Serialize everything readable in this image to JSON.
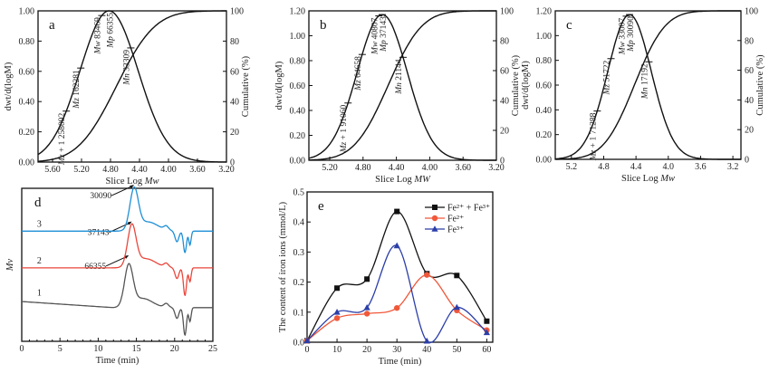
{
  "chart_data": [
    {
      "id": "a",
      "type": "line",
      "panel_label": "a",
      "xlabel": "Slice Log Mw",
      "ylabel_left": "dwt/d(logM)",
      "ylabel_right": "Cumulative (%)",
      "xlim": [
        5.8,
        3.2
      ],
      "ylim_left": [
        0,
        1.0
      ],
      "ylim_right": [
        0,
        100
      ],
      "xticks": [
        "5.60",
        "5.20",
        "4.80",
        "4.40",
        "4.00",
        "3.60",
        "3.20"
      ],
      "xtick_values": [
        5.6,
        5.2,
        4.8,
        4.4,
        4.0,
        3.6,
        3.2
      ],
      "yticks_left": [
        "0.00",
        "0.20",
        "0.40",
        "0.60",
        "0.80",
        "1.00"
      ],
      "ytick_values_left": [
        0,
        0.2,
        0.4,
        0.6,
        0.8,
        1.0
      ],
      "yticks_right": [
        "0",
        "20",
        "40",
        "60",
        "80",
        "100"
      ],
      "ytick_values_right": [
        0,
        20,
        40,
        60,
        80,
        100
      ],
      "distribution": {
        "peak_logM": 4.82,
        "peak_height": 1.0,
        "sigma": 0.4
      },
      "cumulative": {
        "mid_logM": 4.72,
        "sigma": 0.42
      },
      "annotations": [
        {
          "text": "Mz + 1 258092",
          "logM": 5.41
        },
        {
          "text": "Mz 162281",
          "logM": 5.21
        },
        {
          "text": "Mw 83469",
          "logM": 4.92
        },
        {
          "text": "Mp 66355",
          "logM": 4.82
        },
        {
          "text": "Mn 33309",
          "logM": 4.52
        }
      ]
    },
    {
      "id": "b",
      "type": "line",
      "panel_label": "b",
      "xlabel": "Slice Log MW",
      "ylabel_left": "dwt/d(logM)",
      "ylabel_right": "Cumulative (%)",
      "xlim": [
        5.45,
        3.2
      ],
      "ylim_left": [
        0,
        1.2
      ],
      "ylim_right": [
        0,
        100
      ],
      "xticks": [
        "5.20",
        "4.80",
        "4.40",
        "4.00",
        "3.60",
        "3.20"
      ],
      "xtick_values": [
        5.2,
        4.8,
        4.4,
        4.0,
        3.6,
        3.2
      ],
      "yticks_left": [
        "0.00",
        "0.20",
        "0.40",
        "0.60",
        "0.80",
        "1.00",
        "1.20"
      ],
      "ytick_values_left": [
        0,
        0.2,
        0.4,
        0.6,
        0.8,
        1.0,
        1.2
      ],
      "yticks_right": [
        "0",
        "20",
        "40",
        "60",
        "80",
        "100"
      ],
      "ytick_values_right": [
        0,
        20,
        40,
        60,
        80,
        100
      ],
      "distribution": {
        "peak_logM": 4.57,
        "peak_height": 1.17,
        "sigma": 0.3
      },
      "cumulative": {
        "mid_logM": 4.5,
        "sigma": 0.32
      },
      "annotations": [
        {
          "text": "Mz + 1 91060",
          "logM": 4.98
        },
        {
          "text": "Mz 64658",
          "logM": 4.81
        },
        {
          "text": "Mw 40807",
          "logM": 4.61
        },
        {
          "text": "Mp 37143",
          "logM": 4.57
        },
        {
          "text": "Mn 21144",
          "logM": 4.32
        }
      ]
    },
    {
      "id": "c",
      "type": "line",
      "panel_label": "c",
      "xlabel": "Slice Log Mw",
      "ylabel_left": "dwt/d(logM)",
      "ylabel_right": "Cumulative (%)",
      "xlim": [
        5.4,
        3.1
      ],
      "ylim_left": [
        0,
        1.2
      ],
      "ylim_right": [
        0,
        100
      ],
      "xticks": [
        "5.2",
        "4.8",
        "4.4",
        "4.0",
        "3.6",
        "3.2"
      ],
      "xtick_values": [
        5.2,
        4.8,
        4.4,
        4.0,
        3.6,
        3.2
      ],
      "yticks_left": [
        "0.00",
        "0.20",
        "0.40",
        "0.60",
        "0.80",
        "1.00",
        "1.20"
      ],
      "ytick_values_left": [
        0,
        0.2,
        0.4,
        0.6,
        0.8,
        1.0,
        1.2
      ],
      "yticks_right": [
        "0",
        "20",
        "40",
        "60",
        "80",
        "100"
      ],
      "ytick_values_right": [
        0,
        20,
        40,
        60,
        80,
        100
      ],
      "distribution": {
        "peak_logM": 4.48,
        "peak_height": 1.17,
        "sigma": 0.27
      },
      "cumulative": {
        "mid_logM": 4.42,
        "sigma": 0.3
      },
      "annotations": [
        {
          "text": "Mz + 1 71288",
          "logM": 4.88
        },
        {
          "text": "Mz 51722",
          "logM": 4.71
        },
        {
          "text": "Mw 33007",
          "logM": 4.52
        },
        {
          "text": "Mp 30090",
          "logM": 4.48
        },
        {
          "text": "Mn 17192",
          "logM": 4.24
        }
      ]
    },
    {
      "id": "d",
      "type": "line",
      "panel_label": "d",
      "xlabel": "Time (min)",
      "ylabel": "Mv",
      "xlim": [
        0,
        25
      ],
      "xticks": [
        "0",
        "5",
        "10",
        "15",
        "20",
        "25"
      ],
      "xtick_values": [
        0,
        5,
        10,
        15,
        20,
        25
      ],
      "series": [
        {
          "name": "1",
          "color": "#555555",
          "baseline": 0.22,
          "peak_time": 14.0,
          "peak_label": "66355"
        },
        {
          "name": "2",
          "color": "#e8473c",
          "baseline": 0.48,
          "peak_time": 14.4,
          "peak_label": "37143"
        },
        {
          "name": "3",
          "color": "#1f8fd6",
          "baseline": 0.72,
          "peak_time": 14.7,
          "peak_label": "30090"
        }
      ]
    },
    {
      "id": "e",
      "type": "line",
      "panel_label": "e",
      "xlabel": "Time (min)",
      "ylabel": "The content of iron ions (mmol/L)",
      "xlim": [
        0,
        62
      ],
      "ylim": [
        0,
        0.5
      ],
      "xticks": [
        "0",
        "10",
        "20",
        "30",
        "40",
        "50",
        "60"
      ],
      "xtick_values": [
        0,
        10,
        20,
        30,
        40,
        50,
        60
      ],
      "yticks": [
        "0.0",
        "0.1",
        "0.2",
        "0.3",
        "0.4",
        "0.5"
      ],
      "ytick_values": [
        0,
        0.1,
        0.2,
        0.3,
        0.4,
        0.5
      ],
      "legend_position": "top-right",
      "x": [
        0,
        10,
        20,
        30,
        40,
        50,
        60
      ],
      "series": [
        {
          "name": "Fe²⁺ + Fe³⁺",
          "color": "#111111",
          "marker": "square",
          "values": [
            0.005,
            0.18,
            0.21,
            0.435,
            0.228,
            0.222,
            0.07
          ]
        },
        {
          "name": "Fe²⁺",
          "color": "#f0583a",
          "marker": "circle",
          "values": [
            0.005,
            0.08,
            0.095,
            0.114,
            0.224,
            0.106,
            0.04
          ]
        },
        {
          "name": "Fe³⁺",
          "color": "#2b3ea8",
          "marker": "triangle",
          "values": [
            0.005,
            0.1,
            0.115,
            0.321,
            0.004,
            0.116,
            0.032
          ]
        }
      ]
    }
  ]
}
